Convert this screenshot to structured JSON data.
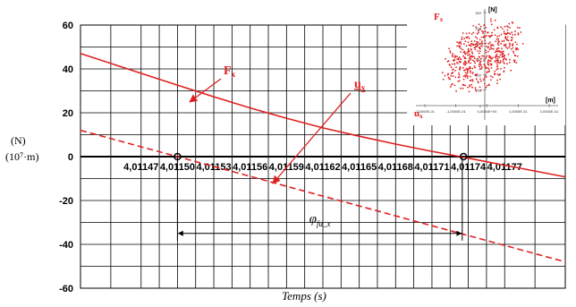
{
  "chart_data": [
    {
      "type": "line",
      "xlabel": "Temps (s)",
      "ylabel": [
        "(N)",
        "(10⁷·m)"
      ],
      "x_ticks": [
        "4,01147",
        "4,01150",
        "4,01153",
        "4,01156",
        "4,01159",
        "4,01162",
        "4,01165",
        "4,01168",
        "4,01171",
        "4,01174",
        "4,01177"
      ],
      "x_tick_values": [
        4.01147,
        4.0115,
        4.01153,
        4.01156,
        4.01159,
        4.01162,
        4.01165,
        4.01168,
        4.01171,
        4.01174,
        4.01177
      ],
      "xlim": [
        4.01142,
        4.01182
      ],
      "y_ticks": [
        60,
        40,
        20,
        0,
        -20,
        -40,
        -60
      ],
      "ylim": [
        -60,
        60
      ],
      "grid": true,
      "series": [
        {
          "name": "F_x",
          "style": "solid",
          "color": "#e02020",
          "x": [
            4.01147,
            4.0115,
            4.01153,
            4.01156,
            4.01159,
            4.01162,
            4.01165,
            4.01168,
            4.01171,
            4.01174,
            4.01177
          ],
          "y": [
            38.0,
            32.6,
            27.3,
            22.2,
            17.5,
            13.1,
            9.3,
            5.7,
            2.4,
            -0.7,
            -3.9
          ]
        },
        {
          "name": "u_x",
          "style": "dashed",
          "color": "#e02020",
          "x": [
            4.01147,
            4.0115,
            4.01153,
            4.01156,
            4.01159,
            4.01162,
            4.01165,
            4.01168,
            4.01171,
            4.01174,
            4.01177
          ],
          "y": [
            4.5,
            0.0,
            -4.5,
            -9.0,
            -13.5,
            -18.0,
            -22.5,
            -27.0,
            -31.5,
            -36.0,
            -40.5
          ]
        }
      ],
      "annotations": [
        {
          "text": "F",
          "subscript": "x",
          "series": "F_x"
        },
        {
          "text": "u",
          "subscript": "x",
          "series": "u_x"
        },
        {
          "text": "φ",
          "subscript": "fu_x",
          "from_x": 4.0115,
          "to_x": 4.011735,
          "y": -35
        }
      ],
      "markers": [
        {
          "x": 4.0115,
          "y": 0
        },
        {
          "x": 4.011736,
          "y": 0
        }
      ]
    },
    {
      "type": "scatter",
      "inset": true,
      "placement": "top-right",
      "ylabel": "[N]",
      "xlabel": "[m]",
      "y_label_text": "F",
      "y_label_sub": "x",
      "x_label_text": "u",
      "x_label_sub": "x",
      "color": "#e02020",
      "x_ticks": [
        "-2,0000E-01",
        "-1,0000E-01",
        "0,0000E+00",
        "1,0000E-01",
        "2,0000E-01"
      ],
      "y_ticks": [
        "300",
        "250",
        "200",
        "150",
        "100",
        "50",
        "0"
      ],
      "xlim": [
        -0.2,
        0.2
      ],
      "ylim": [
        0,
        300
      ]
    }
  ],
  "colors": {
    "accent": "#e02020",
    "grid": "#000000"
  }
}
